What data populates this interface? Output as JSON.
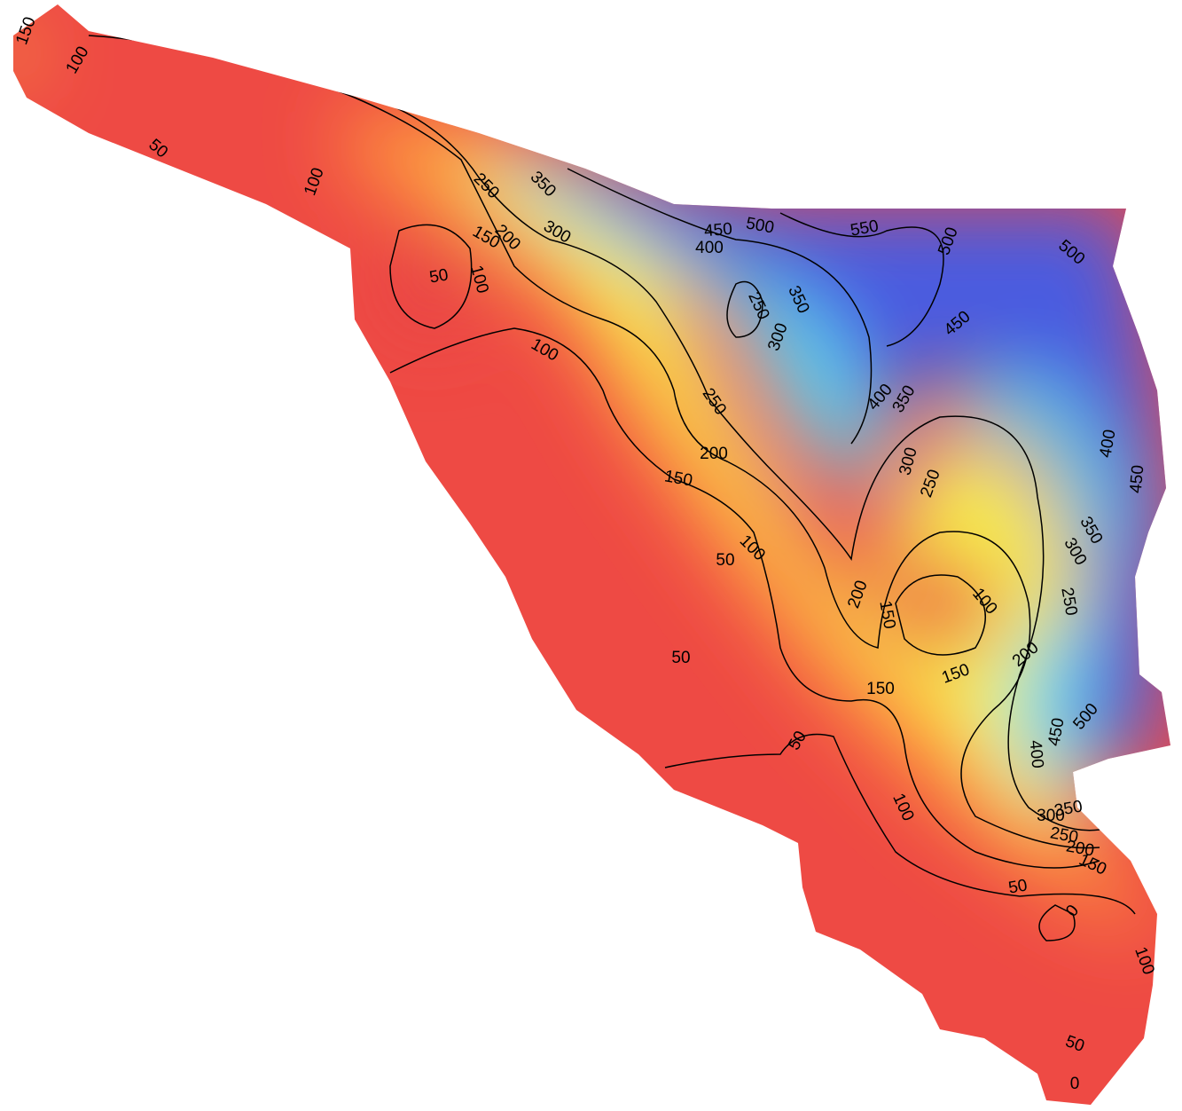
{
  "contour_labels": [
    150,
    100,
    50,
    100,
    250,
    350,
    150,
    200,
    300,
    50,
    100,
    450,
    500,
    550,
    500,
    500,
    400,
    250,
    350,
    300,
    100,
    450,
    400,
    350,
    250,
    300,
    250,
    400,
    450,
    200,
    150,
    350,
    300,
    100,
    50,
    200,
    150,
    100,
    250,
    50,
    200,
    150,
    150,
    500,
    450,
    400,
    50,
    100,
    350,
    300,
    250,
    200,
    150,
    50,
    0,
    100,
    50,
    0
  ]
}
